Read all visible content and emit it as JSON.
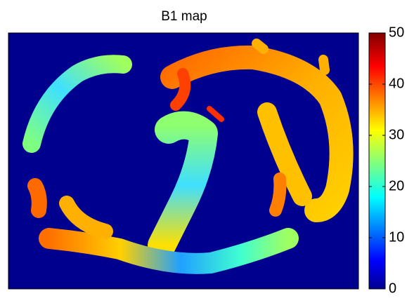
{
  "chart_data": {
    "type": "heatmap",
    "title": "B1 map",
    "background": "#00008f",
    "colorbar": {
      "lim": [
        0,
        50
      ],
      "ticks": [
        0,
        10,
        20,
        30,
        40,
        50
      ],
      "colormap": "jet"
    }
  }
}
